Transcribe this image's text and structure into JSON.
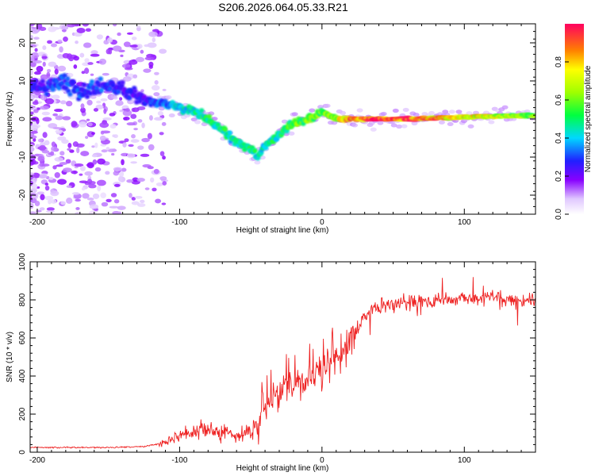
{
  "title": "S206.2026.064.05.33.R21",
  "chart_data": [
    {
      "type": "heatmap",
      "name": "spectrogram",
      "xlabel": "Height of straight line (km)",
      "ylabel": "Frequency (Hz)",
      "xlim": [
        -205,
        150
      ],
      "ylim": [
        -25,
        25
      ],
      "xticks": [
        -200,
        -100,
        0,
        100
      ],
      "yticks": [
        -20,
        -10,
        0,
        10,
        20
      ],
      "colorbar": {
        "label": "Normalized spectral amplitude",
        "range": [
          0,
          1
        ],
        "ticks": [
          0.0,
          0.2,
          0.4,
          0.6,
          0.8
        ]
      },
      "ridge": {
        "x": [
          -200,
          -185,
          -170,
          -155,
          -140,
          -125,
          -110,
          -100,
          -90,
          -80,
          -70,
          -60,
          -50,
          -45,
          -40,
          -30,
          -20,
          -10,
          0,
          10,
          30,
          60,
          100,
          150
        ],
        "y": [
          8,
          10,
          7,
          9,
          8,
          5,
          4,
          3,
          2,
          0,
          -3,
          -6,
          -8,
          -10,
          -7,
          -4,
          -1,
          0,
          2,
          0,
          0,
          0,
          0.5,
          1
        ],
        "amplitude": [
          0.25,
          0.3,
          0.3,
          0.3,
          0.25,
          0.25,
          0.35,
          0.4,
          0.45,
          0.5,
          0.5,
          0.45,
          0.5,
          0.45,
          0.45,
          0.5,
          0.55,
          0.6,
          0.6,
          0.7,
          0.95,
          0.95,
          0.75,
          0.6
        ]
      }
    },
    {
      "type": "line",
      "name": "snr",
      "xlabel": "Height of straight line (km)",
      "ylabel": "SNR (10 * v/v)",
      "xlim": [
        -205,
        150
      ],
      "ylim": [
        0,
        1000
      ],
      "xticks": [
        -200,
        -100,
        0,
        100
      ],
      "yticks": [
        0,
        200,
        400,
        600,
        800,
        1000
      ],
      "color": "#ee2222",
      "envelope": {
        "x": [
          -205,
          -180,
          -150,
          -125,
          -110,
          -100,
          -90,
          -80,
          -70,
          -60,
          -50,
          -40,
          -35,
          -30,
          -20,
          -10,
          0,
          10,
          20,
          30,
          40,
          60,
          80,
          100,
          120,
          150
        ],
        "y": [
          25,
          25,
          25,
          30,
          50,
          90,
          110,
          120,
          105,
          85,
          100,
          230,
          280,
          300,
          340,
          390,
          420,
          480,
          590,
          720,
          770,
          790,
          800,
          800,
          810,
          790
        ]
      }
    }
  ]
}
